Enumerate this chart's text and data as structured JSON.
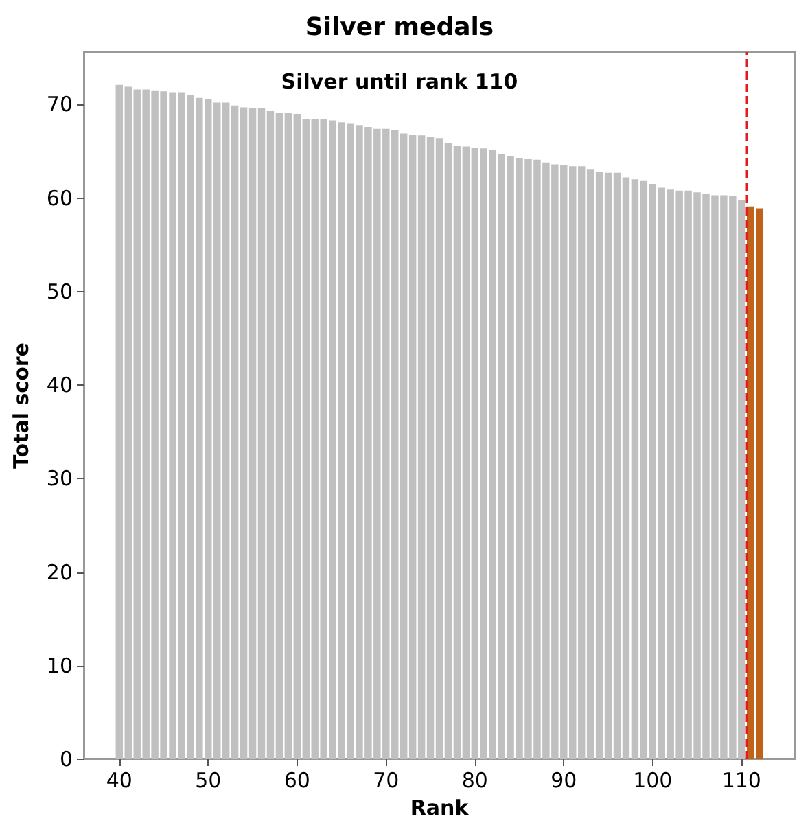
{
  "chart_data": {
    "type": "bar",
    "title": "Silver medals",
    "xlabel": "Rank",
    "ylabel": "Total score",
    "annotations": [
      "Silver until rank 110"
    ],
    "x": [
      40,
      41,
      42,
      43,
      44,
      45,
      46,
      47,
      48,
      49,
      50,
      51,
      52,
      53,
      54,
      55,
      56,
      57,
      58,
      59,
      60,
      61,
      62,
      63,
      64,
      65,
      66,
      67,
      68,
      69,
      70,
      71,
      72,
      73,
      74,
      75,
      76,
      77,
      78,
      79,
      80,
      81,
      82,
      83,
      84,
      85,
      86,
      87,
      88,
      89,
      90,
      91,
      92,
      93,
      94,
      95,
      96,
      97,
      98,
      99,
      100,
      101,
      102,
      103,
      104,
      105,
      106,
      107,
      108,
      109,
      110,
      111,
      112
    ],
    "values": [
      72.1,
      71.9,
      71.6,
      71.6,
      71.5,
      71.4,
      71.3,
      71.3,
      71.0,
      70.7,
      70.6,
      70.2,
      70.2,
      69.9,
      69.7,
      69.6,
      69.6,
      69.3,
      69.1,
      69.1,
      69.0,
      68.4,
      68.4,
      68.4,
      68.3,
      68.1,
      68.0,
      67.8,
      67.6,
      67.4,
      67.4,
      67.3,
      66.9,
      66.8,
      66.7,
      66.5,
      66.4,
      65.9,
      65.6,
      65.5,
      65.4,
      65.3,
      65.1,
      64.7,
      64.5,
      64.3,
      64.2,
      64.1,
      63.8,
      63.6,
      63.5,
      63.4,
      63.4,
      63.1,
      62.8,
      62.7,
      62.7,
      62.2,
      62.0,
      61.9,
      61.5,
      61.1,
      60.9,
      60.8,
      60.8,
      60.6,
      60.4,
      60.3,
      60.3,
      60.2,
      59.8,
      59.1,
      58.9
    ],
    "colors": [
      "#c0c0c0",
      "#c0c0c0",
      "#c0c0c0",
      "#c0c0c0",
      "#c0c0c0",
      "#c0c0c0",
      "#c0c0c0",
      "#c0c0c0",
      "#c0c0c0",
      "#c0c0c0",
      "#c0c0c0",
      "#c0c0c0",
      "#c0c0c0",
      "#c0c0c0",
      "#c0c0c0",
      "#c0c0c0",
      "#c0c0c0",
      "#c0c0c0",
      "#c0c0c0",
      "#c0c0c0",
      "#c0c0c0",
      "#c0c0c0",
      "#c0c0c0",
      "#c0c0c0",
      "#c0c0c0",
      "#c0c0c0",
      "#c0c0c0",
      "#c0c0c0",
      "#c0c0c0",
      "#c0c0c0",
      "#c0c0c0",
      "#c0c0c0",
      "#c0c0c0",
      "#c0c0c0",
      "#c0c0c0",
      "#c0c0c0",
      "#c0c0c0",
      "#c0c0c0",
      "#c0c0c0",
      "#c0c0c0",
      "#c0c0c0",
      "#c0c0c0",
      "#c0c0c0",
      "#c0c0c0",
      "#c0c0c0",
      "#c0c0c0",
      "#c0c0c0",
      "#c0c0c0",
      "#c0c0c0",
      "#c0c0c0",
      "#c0c0c0",
      "#c0c0c0",
      "#c0c0c0",
      "#c0c0c0",
      "#c0c0c0",
      "#c0c0c0",
      "#c0c0c0",
      "#c0c0c0",
      "#c0c0c0",
      "#c0c0c0",
      "#c0c0c0",
      "#c0c0c0",
      "#c0c0c0",
      "#c0c0c0",
      "#c0c0c0",
      "#c0c0c0",
      "#c0c0c0",
      "#c0c0c0",
      "#c0c0c0",
      "#c0c0c0",
      "#c0c0c0",
      "#c0621a",
      "#c0621a"
    ],
    "xlim": [
      36,
      116
    ],
    "xticks": [
      40,
      50,
      60,
      70,
      80,
      90,
      100,
      110
    ],
    "ylim": [
      0,
      75.6
    ],
    "yticks": [
      0,
      10,
      20,
      30,
      40,
      50,
      60,
      70
    ],
    "ref_lines": [
      {
        "axis": "x",
        "value": 110.5,
        "color": "#e41a1c",
        "line_style": "dashed"
      }
    ],
    "grid": false
  }
}
